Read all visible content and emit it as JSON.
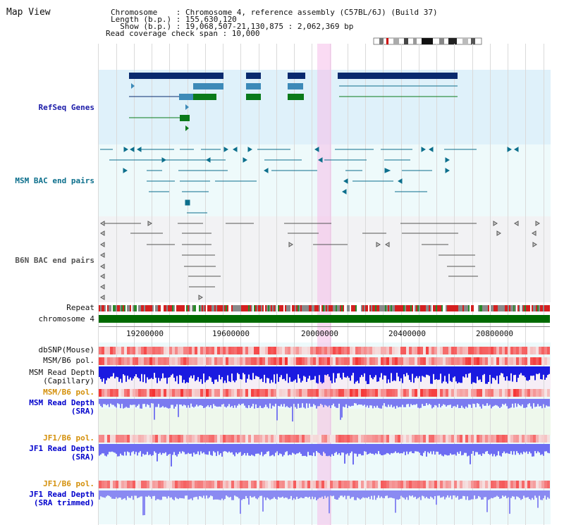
{
  "page": {
    "title": "Map View"
  },
  "info": {
    "chromosome_line": "Chromosome    : Chromosome 4, reference assembly (C57BL/6J) (Build 37)",
    "length_line": "Length (b.p.) : 155,630,120",
    "show_line": "  Show (b.p.) : 19,068,507-21,130,875 : 2,062,369 bp",
    "coverage_line": "Read coverage check span : 10,000"
  },
  "tracks": {
    "refseq": "RefSeq Genes",
    "msm_bac": "MSM BAC end pairs",
    "b6n_bac": "B6N BAC end pairs",
    "repeat": "Repeat",
    "chromosome": "chromosome 4",
    "dbsnp": "dbSNP(Mouse)",
    "msm_b6_pol": "MSM/B6 pol.",
    "msm_depth_cap_1": "MSM Read Depth",
    "msm_depth_cap_2": "(Capillary)",
    "msm_b6_pol_2": "MSM/B6 pol.",
    "msm_depth_sra_1": "MSM Read Depth",
    "msm_depth_sra_2": "(SRA)",
    "jf1_b6_pol": "JF1/B6 pol.",
    "jf1_depth_sra_1": "JF1 Read Depth",
    "jf1_depth_sra_2": "(SRA)",
    "jf1_b6_pol_2": "JF1/B6 pol.",
    "jf1_depth_trim_1": "JF1 Read Depth",
    "jf1_depth_trim_2": "(SRA trimmed)"
  },
  "axis": {
    "ticks": [
      "19200000",
      "19600000",
      "20000000",
      "20400000",
      "20800000"
    ]
  },
  "colors": {
    "refseq_label": "#1a1aa8",
    "msm_bac_label": "#0c6f8c",
    "b6n_label": "#555555",
    "pol_orange": "#d4900b",
    "depth_blue": "#0000cc",
    "navy_gene": "#0a2a6e",
    "steel_gene": "#3d8ab8",
    "green_gene": "#0a7a1a",
    "highlight": "#f6c8ec",
    "chromosome_bar": "#006a00"
  },
  "icons": {
    "ideogram": "chromosome-ideogram-icon"
  }
}
